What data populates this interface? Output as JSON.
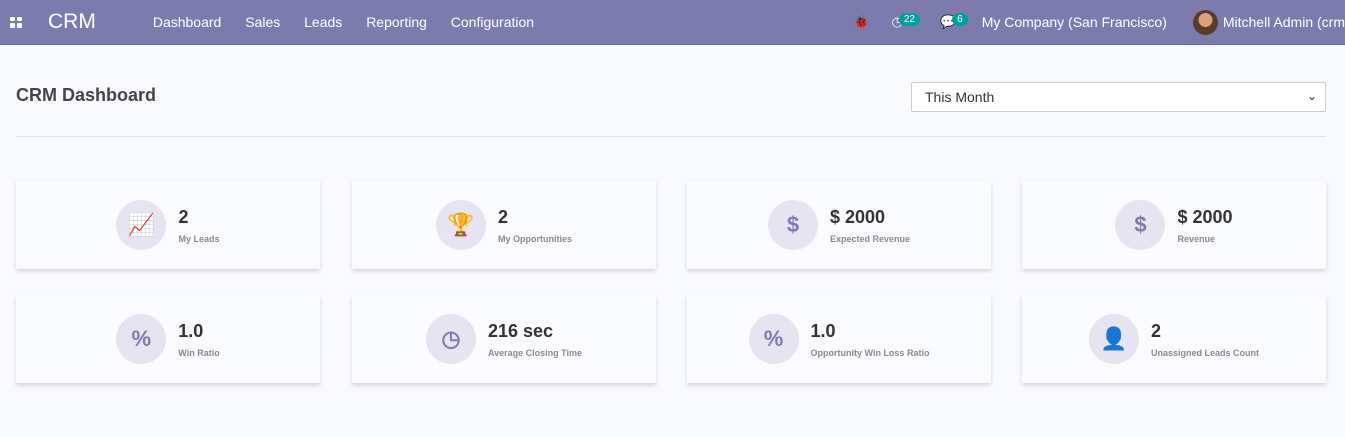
{
  "navbar": {
    "brand": "CRM",
    "menu": [
      "Dashboard",
      "Sales",
      "Leads",
      "Reporting",
      "Configuration"
    ],
    "activity_count": "22",
    "message_count": "6",
    "company": "My Company (San Francisco)",
    "user": "Mitchell Admin (crm"
  },
  "header": {
    "title": "CRM Dashboard",
    "period": "This Month"
  },
  "cards": [
    {
      "icon": "chart-line-icon",
      "glyph": "📈",
      "value": "2",
      "label": "My Leads"
    },
    {
      "icon": "trophy-icon",
      "glyph": "🏆",
      "value": "2",
      "label": "My Opportunities"
    },
    {
      "icon": "dollar-icon",
      "glyph": "$",
      "value": "$ 2000",
      "label": "Expected Revenue"
    },
    {
      "icon": "dollar-icon",
      "glyph": "$",
      "value": "$ 2000",
      "label": "Revenue"
    },
    {
      "icon": "percent-icon",
      "glyph": "%",
      "value": "1.0",
      "label": "Win Ratio"
    },
    {
      "icon": "clock-icon",
      "glyph": "◷",
      "value": "216 sec",
      "label": "Average Closing Time"
    },
    {
      "icon": "percent-icon",
      "glyph": "%",
      "value": "1.0",
      "label": "Opportunity Win Loss Ratio"
    },
    {
      "icon": "user-times-icon",
      "glyph": "👤",
      "value": "2",
      "label": "Unassigned Leads Count"
    }
  ],
  "colors": {
    "navbar": "#7c7bad",
    "badge": "#00a09d",
    "icon_bg": "#e5e4f0"
  }
}
